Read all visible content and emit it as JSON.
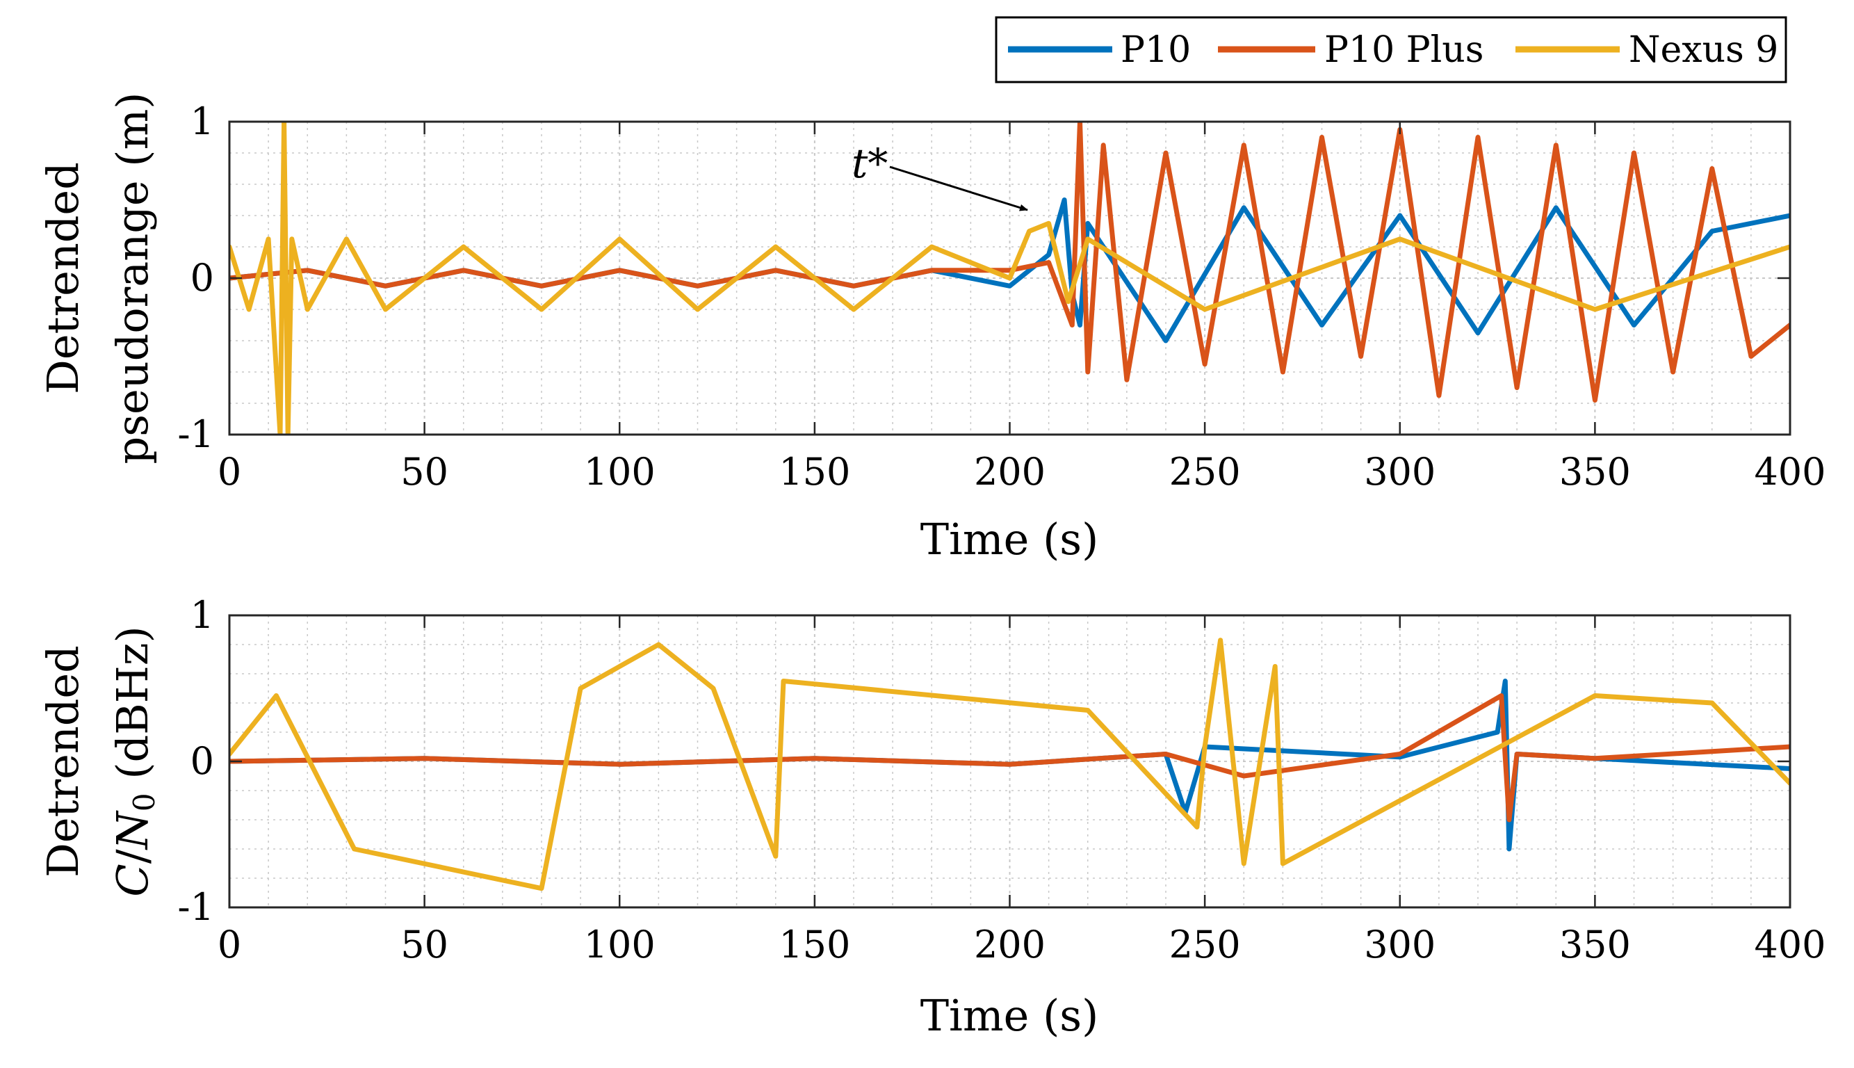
{
  "colors": {
    "p10": "#0072BD",
    "p10plus": "#D95319",
    "nexus9": "#EDB120",
    "grid": "#c8c8c8",
    "axis": "#262626"
  },
  "legend": {
    "location": "top-right, above plots",
    "entries": [
      "P10",
      "P10 Plus",
      "Nexus 9"
    ]
  },
  "annotation": {
    "text": "t*",
    "target": {
      "x": 210,
      "y": 0.5,
      "panel": 0
    }
  },
  "chart_data": [
    {
      "type": "line",
      "title": "",
      "ylabel_line1": "Detrended",
      "ylabel_line2": "pseudorange (m)",
      "xlabel": "Time (s)",
      "xlim": [
        0,
        400
      ],
      "ylim": [
        -1,
        1
      ],
      "xticks": [
        0,
        50,
        100,
        150,
        200,
        250,
        300,
        350,
        400
      ],
      "yticks": [
        -1,
        0,
        1
      ],
      "ytick_labels": [
        "-1",
        "0",
        "1"
      ],
      "grid": true,
      "minor_grid": true,
      "series": [
        {
          "name": "P10",
          "colorKey": "p10",
          "x": [
            0,
            20,
            40,
            60,
            80,
            100,
            120,
            140,
            160,
            180,
            200,
            210,
            214,
            216,
            218,
            220,
            240,
            260,
            280,
            300,
            320,
            340,
            360,
            380,
            400
          ],
          "y": [
            0,
            0.05,
            -0.05,
            0.05,
            -0.05,
            0.05,
            -0.05,
            0.05,
            -0.05,
            0.05,
            -0.05,
            0.15,
            0.5,
            -0.1,
            -0.3,
            0.35,
            -0.4,
            0.45,
            -0.3,
            0.4,
            -0.35,
            0.45,
            -0.3,
            0.3,
            0.4
          ]
        },
        {
          "name": "P10 Plus",
          "colorKey": "p10plus",
          "x": [
            0,
            20,
            40,
            60,
            80,
            100,
            120,
            140,
            160,
            180,
            200,
            210,
            216,
            218,
            220,
            224,
            230,
            240,
            250,
            260,
            270,
            280,
            290,
            300,
            310,
            320,
            330,
            340,
            350,
            360,
            370,
            380,
            390,
            400
          ],
          "y": [
            0,
            0.05,
            -0.05,
            0.05,
            -0.05,
            0.05,
            -0.05,
            0.05,
            -0.05,
            0.05,
            0.05,
            0.1,
            -0.3,
            1.0,
            -0.6,
            0.85,
            -0.65,
            0.8,
            -0.55,
            0.85,
            -0.6,
            0.9,
            -0.5,
            0.95,
            -0.75,
            0.9,
            -0.7,
            0.85,
            -0.78,
            0.8,
            -0.6,
            0.7,
            -0.5,
            -0.3
          ]
        },
        {
          "name": "Nexus 9",
          "colorKey": "nexus9",
          "x": [
            0,
            5,
            10,
            13,
            14,
            15,
            16,
            20,
            30,
            40,
            60,
            80,
            100,
            120,
            140,
            160,
            180,
            200,
            205,
            210,
            215,
            220,
            250,
            300,
            350,
            400
          ],
          "y": [
            0.2,
            -0.2,
            0.25,
            -1.0,
            1.0,
            -1.0,
            0.25,
            -0.2,
            0.25,
            -0.2,
            0.2,
            -0.2,
            0.25,
            -0.2,
            0.2,
            -0.2,
            0.2,
            0.0,
            0.3,
            0.35,
            -0.15,
            0.25,
            -0.2,
            0.25,
            -0.2,
            0.2
          ]
        }
      ]
    },
    {
      "type": "line",
      "title": "",
      "ylabel_line1": "Detrended",
      "ylabel_line2": "C/N0 (dBHz)",
      "ylabel_math": {
        "C": "C",
        "slash": "/",
        "N": "N",
        "sub": "0",
        "unit": " (dBHz)"
      },
      "xlabel": "Time (s)",
      "xlim": [
        0,
        400
      ],
      "ylim": [
        -1,
        1
      ],
      "xticks": [
        0,
        50,
        100,
        150,
        200,
        250,
        300,
        350,
        400
      ],
      "yticks": [
        -1,
        0,
        1
      ],
      "ytick_labels": [
        "-1",
        "0",
        "1"
      ],
      "grid": true,
      "minor_grid": true,
      "series": [
        {
          "name": "P10",
          "colorKey": "p10",
          "x": [
            0,
            50,
            100,
            150,
            200,
            240,
            245,
            250,
            300,
            325,
            327,
            328,
            330,
            350,
            400
          ],
          "y": [
            0,
            0.02,
            -0.02,
            0.02,
            -0.02,
            0.05,
            -0.35,
            0.1,
            0.03,
            0.2,
            0.55,
            -0.6,
            0.05,
            0.02,
            -0.05
          ]
        },
        {
          "name": "P10 Plus",
          "colorKey": "p10plus",
          "x": [
            0,
            50,
            100,
            150,
            200,
            240,
            260,
            300,
            326,
            328,
            330,
            350,
            400
          ],
          "y": [
            0,
            0.02,
            -0.02,
            0.02,
            -0.02,
            0.05,
            -0.1,
            0.05,
            0.45,
            -0.4,
            0.05,
            0.02,
            0.1
          ]
        },
        {
          "name": "Nexus 9",
          "colorKey": "nexus9",
          "x": [
            0,
            12,
            32,
            80,
            90,
            110,
            124,
            140,
            142,
            220,
            248,
            250,
            254,
            260,
            268,
            270,
            350,
            380,
            400
          ],
          "y": [
            0.05,
            0.45,
            -0.6,
            -0.87,
            0.5,
            0.8,
            0.5,
            -0.65,
            0.55,
            0.35,
            -0.45,
            0.1,
            0.83,
            -0.7,
            0.65,
            -0.7,
            0.45,
            0.4,
            -0.15
          ]
        }
      ]
    }
  ]
}
